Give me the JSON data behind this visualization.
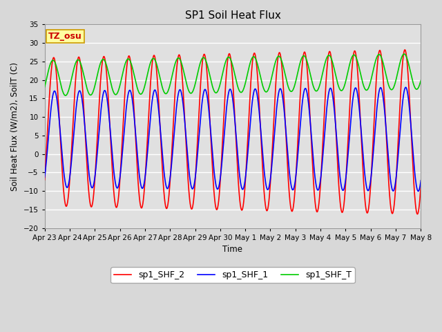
{
  "title": "SP1 Soil Heat Flux",
  "ylabel": "Soil Heat Flux (W/m2), SoilT (C)",
  "xlabel": "Time",
  "ylim": [
    -20,
    35
  ],
  "yticks": [
    -20,
    -15,
    -10,
    -5,
    0,
    5,
    10,
    15,
    20,
    25,
    30,
    35
  ],
  "fig_bg_color": "#d8d8d8",
  "plot_bg_color": "#e0e0e0",
  "grid_color": "#ffffff",
  "tz_label": "TZ_osu",
  "tz_box_facecolor": "#ffffa0",
  "tz_box_edgecolor": "#cc9900",
  "tz_text_color": "#cc0000",
  "legend": [
    "sp1_SHF_2",
    "sp1_SHF_1",
    "sp1_SHF_T"
  ],
  "line_colors": [
    "#ff0000",
    "#0000ff",
    "#00cc00"
  ],
  "line_width": 1.2,
  "n_days": 15,
  "x_labels": [
    "Apr 23",
    "Apr 24",
    "Apr 25",
    "Apr 26",
    "Apr 27",
    "Apr 28",
    "Apr 29",
    "Apr 30",
    "May 1",
    "May 2",
    "May 3",
    "May 4",
    "May 5",
    "May 6",
    "May 7",
    "May 8"
  ]
}
